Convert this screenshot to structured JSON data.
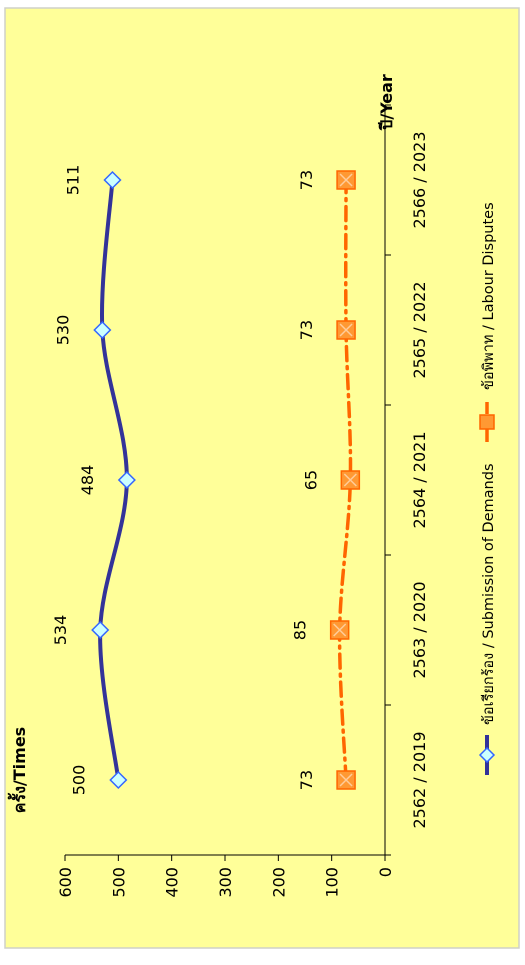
{
  "colors": {
    "panel_background": "#ffff99",
    "panel_border": "#cfd0c8",
    "series_demands": "#333399",
    "series_disputes": "#ff6600",
    "marker_demands_fill": "#ccffff",
    "marker_demands_stroke": "#3366ff",
    "marker_disputes_fill": "#ff9933",
    "marker_disputes_stroke": "#ff6600"
  },
  "chart_data": {
    "type": "line",
    "orientation": "rotated-90-ccw",
    "xlabel": "ปี/Year",
    "ylabel": "ครั้ง/Times",
    "ylim": [
      0,
      600
    ],
    "yticks": [
      0,
      100,
      200,
      300,
      400,
      500,
      600
    ],
    "grid": false,
    "legend_placement": "bottom",
    "categories": [
      "2562 / 2019",
      "2563 / 2020",
      "2564 / 2021",
      "2565 / 2022",
      "2566 / 2023"
    ],
    "series": [
      {
        "name": "ข้อเรียกร้อง / Submission of Demands",
        "values": [
          500,
          534,
          484,
          530,
          511
        ],
        "labels": [
          "500",
          "534",
          "484",
          "530",
          "511"
        ],
        "line_style": "solid",
        "marker": "diamond"
      },
      {
        "name": "ข้อพิพาท / Labour Disputes",
        "values": [
          73,
          85,
          65,
          73,
          73
        ],
        "labels": [
          "73",
          "85",
          "65",
          "73",
          "73"
        ],
        "line_style": "dash-dot",
        "marker": "square-x"
      }
    ]
  }
}
